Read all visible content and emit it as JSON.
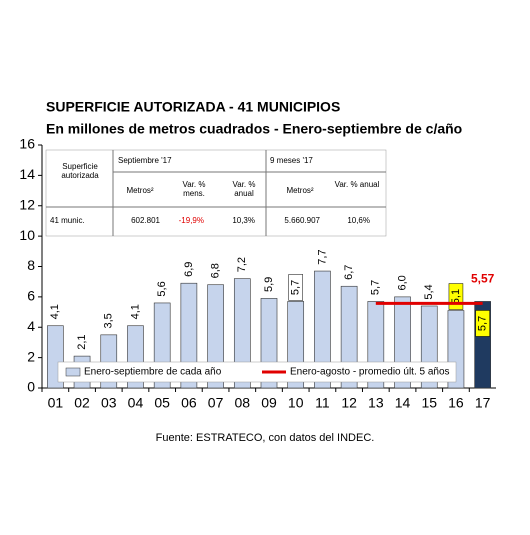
{
  "chart_data": {
    "type": "bar",
    "title": "SUPERFICIE AUTORIZADA - 41 MUNICIPIOS",
    "subtitle": "En millones de metros cuadrados - Enero-septiembre de c/año",
    "source": "Fuente: ESTRATECO, con datos del INDEC.",
    "categories": [
      "01",
      "02",
      "03",
      "04",
      "05",
      "06",
      "07",
      "08",
      "09",
      "10",
      "11",
      "12",
      "13",
      "14",
      "15",
      "16",
      "17"
    ],
    "series": [
      {
        "name": "Enero-septiembre de cada año",
        "type": "bar",
        "colors": [
          "#c6d4ec",
          "#c6d4ec",
          "#c6d4ec",
          "#c6d4ec",
          "#c6d4ec",
          "#c6d4ec",
          "#c6d4ec",
          "#c6d4ec",
          "#c6d4ec",
          "#c6d4ec",
          "#c6d4ec",
          "#c6d4ec",
          "#c6d4ec",
          "#c6d4ec",
          "#c6d4ec",
          "#c6d4ec",
          "#1f3a60"
        ],
        "values": [
          4.1,
          2.1,
          3.5,
          4.1,
          5.6,
          6.9,
          6.8,
          7.2,
          5.9,
          5.7,
          7.7,
          6.7,
          5.7,
          6.0,
          5.4,
          5.1,
          5.7
        ],
        "value_labels": [
          "4,1",
          "2,1",
          "3,5",
          "4,1",
          "5,6",
          "6,9",
          "6,8",
          "7,2",
          "5,9",
          "5,7",
          "7,7",
          "6,7",
          "5,7",
          "6,0",
          "5,4",
          "5,1",
          "5,7"
        ],
        "label_backgrounds": [
          null,
          null,
          null,
          null,
          null,
          null,
          null,
          null,
          null,
          "#ffffff",
          null,
          null,
          null,
          null,
          null,
          "#ffff00",
          "#ffff00"
        ]
      },
      {
        "name": "Enero-agosto - promedio últ. 5 años",
        "type": "line",
        "color": "#e00000",
        "values": [
          null,
          null,
          null,
          null,
          null,
          null,
          null,
          null,
          null,
          null,
          null,
          null,
          5.57,
          5.57,
          5.57,
          5.57,
          5.57
        ],
        "value_labels": [
          null,
          null,
          null,
          null,
          null,
          null,
          null,
          null,
          null,
          null,
          null,
          null,
          null,
          null,
          null,
          null,
          "5,57"
        ]
      }
    ],
    "ylim": [
      0,
      16
    ],
    "yticks": [
      0,
      2,
      4,
      6,
      8,
      10,
      12,
      14,
      16
    ],
    "grid": false,
    "table": {
      "corner": "Superficie autorizada",
      "groups": [
        "Septiembre '17",
        "9 meses '17"
      ],
      "headers": [
        "Metros²",
        "Var. % mens.",
        "Var. % anual",
        "Metros²",
        "Var. % anual"
      ],
      "row_label": "41 munic.",
      "row": [
        "602.801",
        "-19,9%",
        "10,3%",
        "5.660.907",
        "10,6%"
      ]
    }
  }
}
